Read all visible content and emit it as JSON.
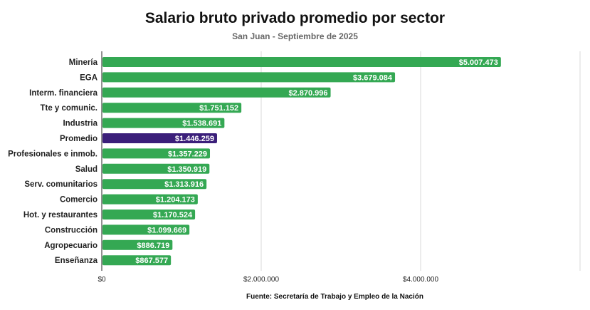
{
  "header": {
    "title": "Salario bruto privado promedio por sector",
    "subtitle": "San Juan - Septiembre de 2025"
  },
  "footer": {
    "source": "Fuente: Secretaría de Trabajo y Empleo de la Nación"
  },
  "colors": {
    "bar": "#34a853",
    "highlight": "#3b1f7a",
    "grid": "#d9d9d9",
    "axis": "#222222"
  },
  "chart_data": {
    "type": "bar",
    "orientation": "horizontal",
    "title": "Salario bruto privado promedio por sector",
    "subtitle": "San Juan - Septiembre de 2025",
    "categories": [
      "Minería",
      "EGA",
      "Interm. financiera",
      "Tte y comunic.",
      "Industria",
      "Promedio",
      "Profesionales e inmob.",
      "Salud",
      "Serv. comunitarios",
      "Comercio",
      "Hot. y restaurantes",
      "Construcción",
      "Agropecuario",
      "Enseñanza"
    ],
    "values": [
      5007473,
      3679084,
      2870996,
      1751152,
      1538691,
      1446259,
      1357229,
      1350919,
      1313916,
      1204173,
      1170524,
      1099669,
      886719,
      867577
    ],
    "value_labels": [
      "$5.007.473",
      "$3.679.084",
      "$2.870.996",
      "$1.751.152",
      "$1.538.691",
      "$1.446.259",
      "$1.357.229",
      "$1.350.919",
      "$1.313.916",
      "$1.204.173",
      "$1.170.524",
      "$1.099.669",
      "$886.719",
      "$867.577"
    ],
    "highlight": "Promedio",
    "xlim": [
      0,
      6000000
    ],
    "x_ticks": [
      0,
      2000000,
      4000000,
      6000000
    ],
    "x_tick_labels": [
      "$0",
      "$2.000.000",
      "$4.000.000",
      ""
    ],
    "grid": true,
    "legend": "none",
    "source": "Fuente: Secretaría de Trabajo y Empleo de la Nación"
  }
}
